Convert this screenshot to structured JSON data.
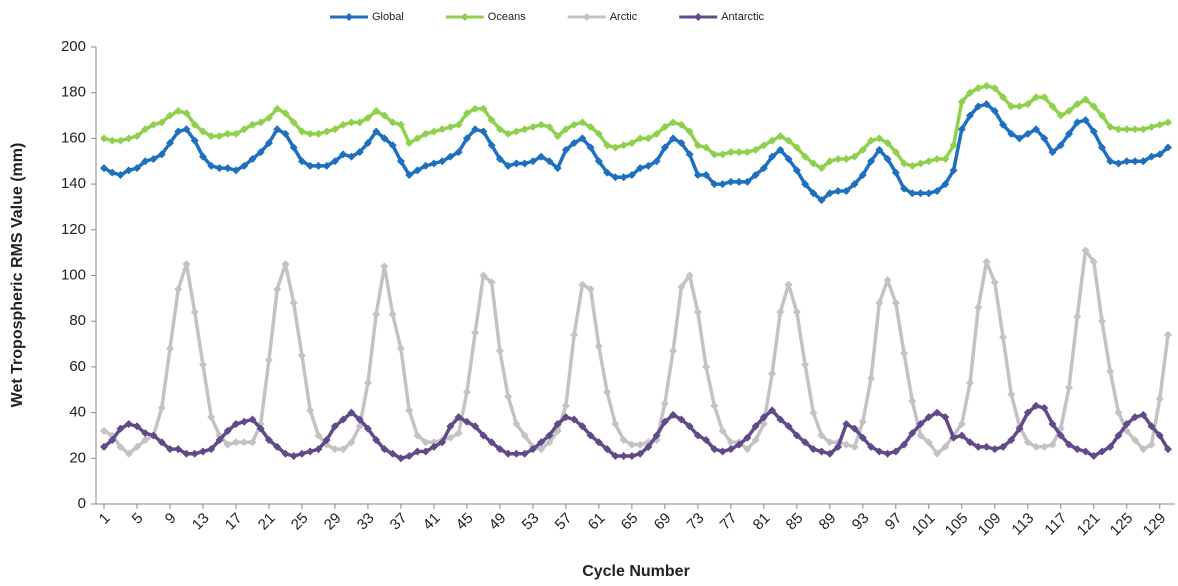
{
  "chart_data": {
    "type": "line",
    "x_label": "Cycle Number",
    "y_label": "Wet Tropospheric RMS Value (mm)",
    "x": [
      1,
      2,
      3,
      4,
      5,
      6,
      7,
      8,
      9,
      10,
      11,
      12,
      13,
      14,
      15,
      16,
      17,
      18,
      19,
      20,
      21,
      22,
      23,
      24,
      25,
      26,
      27,
      28,
      29,
      30,
      31,
      32,
      33,
      34,
      35,
      36,
      37,
      38,
      39,
      40,
      41,
      42,
      43,
      44,
      45,
      46,
      47,
      48,
      49,
      50,
      51,
      52,
      53,
      54,
      55,
      56,
      57,
      58,
      59,
      60,
      61,
      62,
      63,
      64,
      65,
      66,
      67,
      68,
      69,
      70,
      71,
      72,
      73,
      74,
      75,
      76,
      77,
      78,
      79,
      80,
      81,
      82,
      83,
      84,
      85,
      86,
      87,
      88,
      89,
      90,
      91,
      92,
      93,
      94,
      95,
      96,
      97,
      98,
      99,
      100,
      101,
      102,
      103,
      104,
      105,
      106,
      107,
      108,
      109,
      110,
      111,
      112,
      113,
      114,
      115,
      116,
      117,
      118,
      119,
      120,
      121,
      122,
      123,
      124,
      125,
      126,
      127,
      128,
      129,
      130
    ],
    "xlim": [
      1,
      130
    ],
    "xticks": [
      1,
      5,
      9,
      13,
      17,
      21,
      25,
      29,
      33,
      37,
      41,
      45,
      49,
      53,
      57,
      61,
      65,
      69,
      73,
      77,
      81,
      85,
      89,
      93,
      97,
      101,
      105,
      109,
      113,
      117,
      121,
      125,
      129
    ],
    "ylim": [
      0,
      200
    ],
    "yticks": [
      0,
      20,
      40,
      60,
      80,
      100,
      120,
      140,
      160,
      180,
      200
    ],
    "grid": false,
    "legend": "top",
    "series": [
      {
        "name": "Global",
        "color": "#1f6fc0",
        "values": [
          147,
          145,
          144,
          146,
          147,
          150,
          151,
          153,
          158,
          163,
          164,
          159,
          152,
          148,
          147,
          147,
          146,
          148,
          151,
          154,
          158,
          164,
          162,
          156,
          150,
          148,
          148,
          148,
          150,
          153,
          152,
          154,
          158,
          163,
          160,
          157,
          150,
          144,
          146,
          148,
          149,
          150,
          152,
          154,
          160,
          164,
          163,
          157,
          151,
          148,
          149,
          149,
          150,
          152,
          150,
          147,
          155,
          158,
          160,
          156,
          150,
          145,
          143,
          143,
          144,
          147,
          148,
          150,
          156,
          160,
          158,
          153,
          144,
          144,
          140,
          140,
          141,
          141,
          141,
          144,
          147,
          152,
          155,
          151,
          146,
          140,
          136,
          133,
          136,
          137,
          137,
          140,
          144,
          150,
          155,
          151,
          145,
          138,
          136,
          136,
          136,
          137,
          140,
          146,
          164,
          170,
          174,
          175,
          172,
          166,
          162,
          160,
          162,
          164,
          160,
          154,
          157,
          162,
          167,
          168,
          163,
          156,
          150,
          149,
          150,
          150,
          150,
          152,
          153,
          156
        ]
      },
      {
        "name": "Oceans",
        "color": "#8fd14f",
        "values": [
          160,
          159,
          159,
          160,
          161,
          164,
          166,
          167,
          170,
          172,
          171,
          166,
          163,
          161,
          161,
          162,
          162,
          164,
          166,
          167,
          169,
          173,
          171,
          167,
          163,
          162,
          162,
          163,
          164,
          166,
          167,
          167,
          169,
          172,
          170,
          167,
          166,
          158,
          160,
          162,
          163,
          164,
          165,
          166,
          171,
          173,
          173,
          168,
          164,
          162,
          163,
          164,
          165,
          166,
          165,
          161,
          164,
          166,
          167,
          165,
          162,
          157,
          156,
          157,
          158,
          160,
          160,
          162,
          165,
          167,
          166,
          163,
          157,
          156,
          153,
          153,
          154,
          154,
          154,
          155,
          157,
          159,
          161,
          159,
          156,
          152,
          149,
          147,
          150,
          151,
          151,
          152,
          155,
          159,
          160,
          158,
          154,
          149,
          148,
          149,
          150,
          151,
          151,
          157,
          176,
          180,
          182,
          183,
          182,
          178,
          174,
          174,
          175,
          178,
          178,
          174,
          170,
          172,
          175,
          177,
          174,
          170,
          165,
          164,
          164,
          164,
          164,
          165,
          166,
          167
        ]
      },
      {
        "name": "Arctic",
        "color": "#c3c3c3",
        "values": [
          32,
          30,
          25,
          22,
          25,
          28,
          30,
          42,
          68,
          94,
          105,
          84,
          61,
          38,
          30,
          26,
          27,
          27,
          27,
          35,
          63,
          94,
          105,
          88,
          65,
          41,
          30,
          26,
          24,
          24,
          27,
          34,
          53,
          83,
          104,
          83,
          68,
          41,
          30,
          27,
          27,
          28,
          29,
          31,
          49,
          75,
          100,
          97,
          67,
          47,
          35,
          30,
          25,
          24,
          27,
          32,
          43,
          74,
          96,
          94,
          69,
          49,
          35,
          28,
          26,
          26,
          27,
          28,
          44,
          67,
          95,
          100,
          84,
          60,
          43,
          32,
          27,
          27,
          24,
          28,
          35,
          57,
          84,
          96,
          84,
          61,
          40,
          30,
          27,
          27,
          26,
          25,
          36,
          55,
          88,
          98,
          88,
          66,
          45,
          30,
          27,
          22,
          25,
          30,
          35,
          53,
          86,
          106,
          97,
          73,
          48,
          34,
          27,
          25,
          25,
          26,
          33,
          51,
          82,
          111,
          106,
          80,
          58,
          40,
          32,
          28,
          24,
          26,
          46,
          74
        ]
      },
      {
        "name": "Antarctic",
        "color": "#604a8a",
        "values": [
          25,
          28,
          33,
          35,
          34,
          31,
          30,
          27,
          24,
          24,
          22,
          22,
          23,
          24,
          28,
          32,
          35,
          36,
          37,
          33,
          28,
          25,
          22,
          21,
          22,
          23,
          24,
          28,
          34,
          37,
          40,
          37,
          33,
          28,
          24,
          22,
          20,
          21,
          23,
          23,
          25,
          27,
          34,
          38,
          36,
          34,
          30,
          27,
          24,
          22,
          22,
          22,
          24,
          27,
          30,
          35,
          38,
          37,
          34,
          30,
          27,
          24,
          21,
          21,
          21,
          22,
          25,
          30,
          36,
          39,
          37,
          34,
          30,
          28,
          24,
          23,
          24,
          26,
          29,
          34,
          38,
          41,
          37,
          34,
          30,
          27,
          24,
          23,
          22,
          25,
          35,
          33,
          29,
          25,
          23,
          22,
          23,
          26,
          31,
          35,
          38,
          40,
          38,
          29,
          30,
          27,
          25,
          25,
          24,
          25,
          28,
          33,
          40,
          43,
          42,
          35,
          30,
          26,
          24,
          23,
          21,
          23,
          25,
          30,
          35,
          38,
          39,
          34,
          30,
          24
        ]
      }
    ]
  }
}
